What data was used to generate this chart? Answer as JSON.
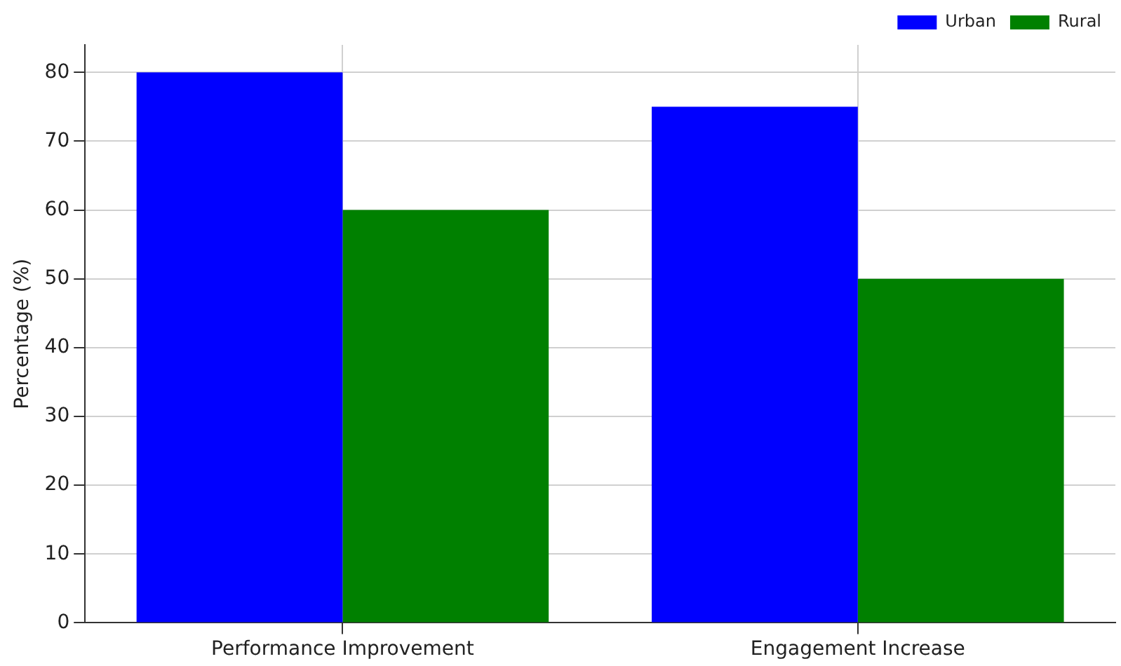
{
  "chart_data": {
    "type": "bar",
    "ylabel": "Percentage (%)",
    "categories": [
      "Performance Improvement",
      "Engagement Increase"
    ],
    "series": [
      {
        "name": "Urban",
        "color": "#0000ff",
        "values": [
          80,
          75
        ]
      },
      {
        "name": "Rural",
        "color": "#008000",
        "values": [
          60,
          50
        ]
      }
    ],
    "ylim": [
      0,
      84
    ],
    "yticks": [
      0,
      10,
      20,
      30,
      40,
      50,
      60,
      70,
      80
    ],
    "grid": true,
    "legend": "top right"
  }
}
